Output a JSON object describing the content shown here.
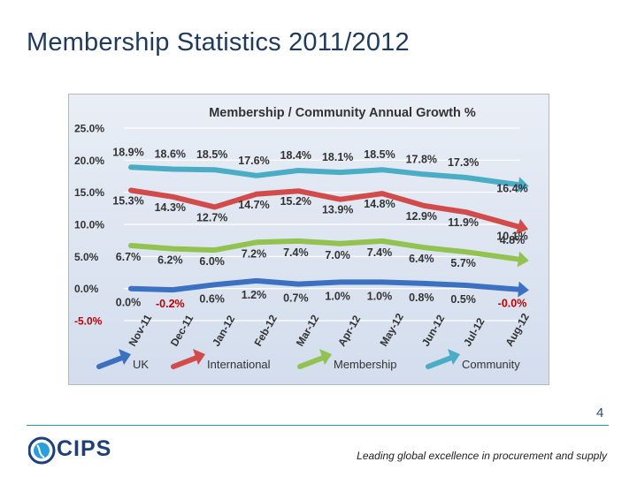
{
  "slide": {
    "title": "Membership Statistics 2011/2012",
    "page_number": "4",
    "logo_text": "CIPS",
    "tagline": "Leading global excellence in procurement and supply"
  },
  "colors": {
    "UK": "#3c70c0",
    "International": "#d24b4b",
    "Membership": "#92c24f",
    "Community": "#4bacc6",
    "background": "#dbe4f0",
    "title_blue": "#1f3a5f"
  },
  "chart_data": {
    "type": "line",
    "title": "Membership / Community  Annual Growth %",
    "categories": [
      "Nov-11",
      "Dec-11",
      "Jan-12",
      "Feb-12",
      "Mar-12",
      "Apr-12",
      "May-12",
      "Jun-12",
      "Jul-12",
      "Aug-12"
    ],
    "y_ticks": [
      "25.0%",
      "20.0%",
      "15.0%",
      "10.0%",
      "5.0%",
      "0.0%",
      "-5.0%"
    ],
    "ylim": [
      -5,
      25
    ],
    "grid": true,
    "legend_position": "bottom",
    "series": [
      {
        "name": "UK",
        "values": [
          0.0,
          -0.2,
          0.6,
          1.2,
          0.7,
          1.0,
          1.0,
          0.8,
          0.5,
          -0.0
        ],
        "labels": [
          "0.0%",
          "-0.2%",
          "0.6%",
          "1.2%",
          "0.7%",
          "1.0%",
          "1.0%",
          "0.8%",
          "0.5%",
          "-0.0%"
        ]
      },
      {
        "name": "International",
        "values": [
          15.3,
          14.3,
          12.7,
          14.7,
          15.2,
          13.9,
          14.8,
          12.9,
          11.9,
          10.1
        ],
        "labels": [
          "15.3%",
          "14.3%",
          "12.7%",
          "14.7%",
          "15.2%",
          "13.9%",
          "14.8%",
          "12.9%",
          "11.9%",
          "10.1%"
        ]
      },
      {
        "name": "Membership",
        "values": [
          6.7,
          6.2,
          6.0,
          7.2,
          7.4,
          7.0,
          7.4,
          6.4,
          5.7,
          4.8
        ],
        "labels": [
          "6.7%",
          "6.2%",
          "6.0%",
          "7.2%",
          "7.4%",
          "7.0%",
          "7.4%",
          "6.4%",
          "5.7%",
          "4.8%"
        ]
      },
      {
        "name": "Community",
        "values": [
          18.9,
          18.6,
          18.5,
          17.6,
          18.4,
          18.1,
          18.5,
          17.8,
          17.3,
          16.4
        ],
        "labels": [
          "18.9%",
          "18.6%",
          "18.5%",
          "17.6%",
          "18.4%",
          "18.1%",
          "18.5%",
          "17.8%",
          "17.3%",
          "16.4%"
        ]
      }
    ]
  }
}
